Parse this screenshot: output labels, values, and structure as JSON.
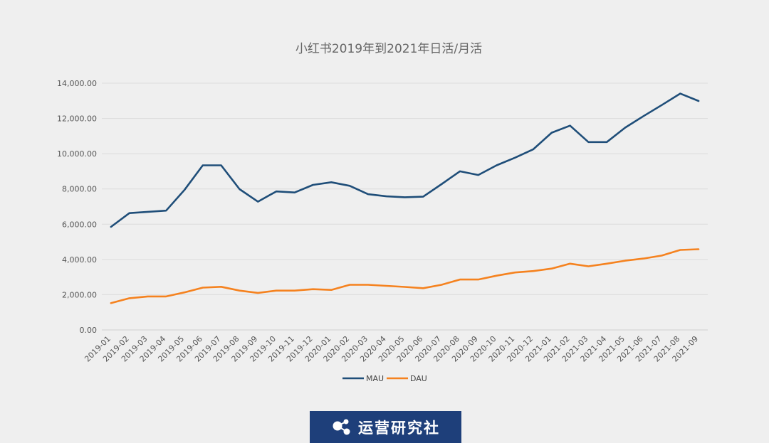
{
  "chart_data": {
    "type": "line",
    "title": "小红书2019年到2021年日活/月活",
    "categories": [
      "2019-01",
      "2019-02",
      "2019-03",
      "2019-04",
      "2019-05",
      "2019-06",
      "2019-07",
      "2019-08",
      "2019-09",
      "2019-10",
      "2019-11",
      "2019-12",
      "2020-01",
      "2020-02",
      "2020-03",
      "2020-04",
      "2020-05",
      "2020-06",
      "2020-07",
      "2020-08",
      "2020-09",
      "2020-10",
      "2020-11",
      "2020-12",
      "2021-01",
      "2021-02",
      "2021-03",
      "2021-04",
      "2021-05",
      "2021-06",
      "2021-07",
      "2021-08",
      "2021-09"
    ],
    "y_ticks": [
      "0.00",
      "2,000.00",
      "4,000.00",
      "6,000.00",
      "8,000.00",
      "10,000.00",
      "12,000.00",
      "14,000.00"
    ],
    "ylim": [
      0,
      14000
    ],
    "grid": true,
    "legend_position": "bottom",
    "series": [
      {
        "name": "MAU",
        "color": "#1f4e79",
        "values": [
          5850,
          6630,
          6700,
          6770,
          7940,
          9340,
          9340,
          7990,
          7280,
          7860,
          7800,
          8230,
          8380,
          8180,
          7700,
          7580,
          7530,
          7560,
          8270,
          9000,
          8790,
          9340,
          9770,
          10250,
          11190,
          11590,
          10660,
          10660,
          11480,
          12130,
          12760,
          13410,
          12990
        ]
      },
      {
        "name": "DAU",
        "color": "#f5821f",
        "values": [
          1520,
          1800,
          1900,
          1900,
          2130,
          2400,
          2450,
          2230,
          2100,
          2230,
          2230,
          2310,
          2270,
          2560,
          2560,
          2500,
          2440,
          2370,
          2560,
          2860,
          2860,
          3080,
          3260,
          3340,
          3480,
          3760,
          3610,
          3760,
          3930,
          4050,
          4220,
          4540,
          4580
        ]
      }
    ]
  },
  "badge": {
    "text": "运营研究社",
    "bg_color": "#1e3f7a",
    "icon": "share-nodes-icon"
  }
}
